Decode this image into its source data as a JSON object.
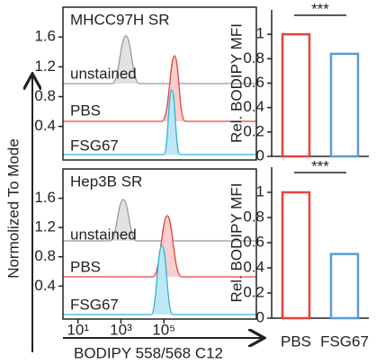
{
  "chart_data": [
    {
      "type": "histogram-overlay",
      "title": "MHCC97H SR",
      "labels": [
        "unstained",
        "PBS",
        "FSG67"
      ],
      "y_label": "Normolized To Mode",
      "xscale": "log",
      "xlim": [
        2,
        2000000000
      ],
      "ylim": [
        -0.05,
        2.0
      ],
      "yticks": [
        0.4,
        0.8,
        1.2,
        1.6
      ]
    },
    {
      "type": "bar",
      "y_label": "Rel. BODIPY MFI",
      "significance": "***",
      "values": [
        1.0,
        0.84
      ],
      "colors": [
        "#e8413c",
        "#5b9bd5"
      ],
      "ylim": [
        0,
        1.2
      ],
      "yticks": [
        0,
        0.2,
        0.4,
        0.6,
        0.8,
        1
      ]
    },
    {
      "type": "histogram-overlay",
      "title": "Hep3B SR",
      "labels": [
        "unstained",
        "PBS",
        "FSG67"
      ],
      "x_label": "BODIPY 558/568 C12",
      "xscale": "log",
      "xlim": [
        2,
        2000000000
      ],
      "xticks": [
        {
          "value": 10,
          "label": "10¹"
        },
        {
          "value": 1000,
          "label": "10³"
        },
        {
          "value": 100000,
          "label": "10⁵"
        }
      ],
      "ylim": [
        -0.05,
        2.0
      ],
      "yticks": [
        0.4,
        0.8,
        1.2,
        1.6
      ]
    },
    {
      "type": "bar",
      "y_label": "Rel. BODIPY MFI",
      "significance": "***",
      "categories": [
        "PBS",
        "FSG67"
      ],
      "values": [
        1.0,
        0.51
      ],
      "colors": [
        "#e8413c",
        "#5b9bd5"
      ],
      "ylim": [
        0,
        1.2
      ],
      "yticks": [
        0,
        0.2,
        0.4,
        0.6,
        0.8,
        1
      ]
    }
  ]
}
